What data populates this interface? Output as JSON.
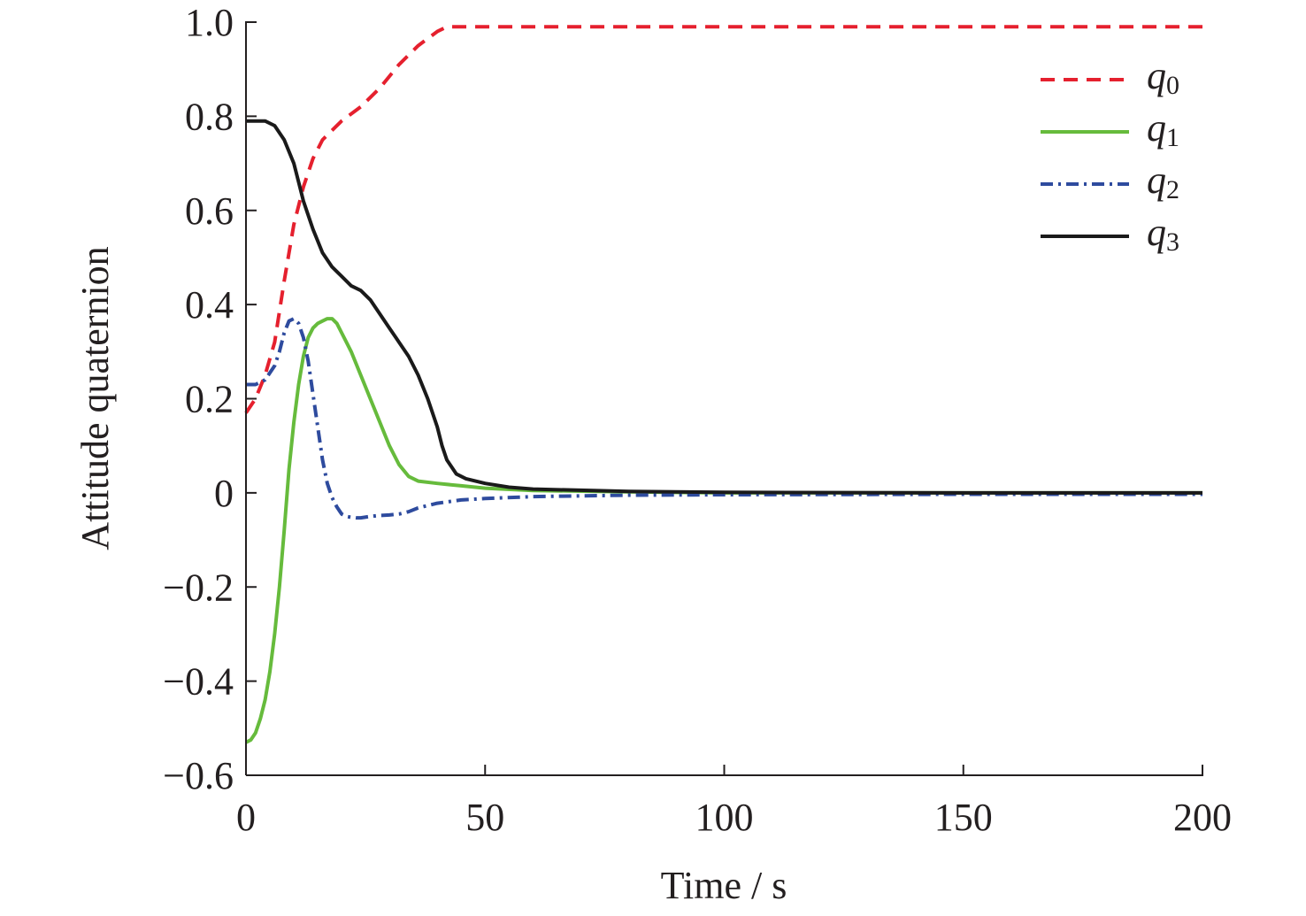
{
  "chart_data": {
    "type": "line",
    "title": "",
    "xlabel": "Time / s",
    "ylabel": "Attitude quaternion",
    "xlim": [
      0,
      200
    ],
    "ylim": [
      -0.6,
      1.0
    ],
    "xticks": [
      0,
      50,
      100,
      150,
      200
    ],
    "xtick_labels": [
      "0",
      "50",
      "100",
      "150",
      "200"
    ],
    "yticks": [
      -0.6,
      -0.4,
      -0.2,
      0,
      0.2,
      0.4,
      0.6,
      0.8,
      1.0
    ],
    "ytick_labels": [
      "−0.6",
      "−0.4",
      "−0.2",
      "0",
      "0.2",
      "0.4",
      "0.6",
      "0.8",
      "1.0"
    ],
    "grid": false,
    "legend_position": "top-right",
    "series": [
      {
        "name": "q",
        "subscript": "0",
        "color": "#e5202e",
        "style": "dashed",
        "x": [
          0,
          2,
          4,
          6,
          8,
          10,
          12,
          14,
          16,
          18,
          20,
          24,
          28,
          32,
          36,
          40,
          42,
          44,
          50,
          60,
          80,
          100,
          150,
          200
        ],
        "y": [
          0.17,
          0.2,
          0.25,
          0.32,
          0.45,
          0.57,
          0.65,
          0.71,
          0.75,
          0.77,
          0.79,
          0.82,
          0.86,
          0.91,
          0.95,
          0.98,
          0.99,
          0.99,
          0.99,
          0.99,
          0.99,
          0.99,
          0.99,
          0.99
        ]
      },
      {
        "name": "q",
        "subscript": "1",
        "color": "#66bb3c",
        "style": "solid",
        "x": [
          0,
          1,
          2,
          3,
          4,
          5,
          6,
          7,
          8,
          9,
          10,
          11,
          12,
          13,
          14,
          15,
          16,
          17,
          18,
          19,
          20,
          22,
          24,
          26,
          28,
          30,
          32,
          34,
          36,
          40,
          45,
          50,
          60,
          80,
          100,
          150,
          200
        ],
        "y": [
          -0.53,
          -0.525,
          -0.51,
          -0.48,
          -0.44,
          -0.38,
          -0.3,
          -0.2,
          -0.08,
          0.05,
          0.15,
          0.23,
          0.29,
          0.33,
          0.35,
          0.36,
          0.365,
          0.37,
          0.37,
          0.36,
          0.34,
          0.3,
          0.25,
          0.2,
          0.15,
          0.1,
          0.06,
          0.035,
          0.025,
          0.02,
          0.015,
          0.01,
          0.005,
          0.002,
          0.0,
          0.0,
          0.0
        ]
      },
      {
        "name": "q",
        "subscript": "2",
        "color": "#2e4b9e",
        "style": "dashdot",
        "x": [
          0,
          2,
          4,
          6,
          7,
          8,
          9,
          10,
          11,
          12,
          13,
          14,
          15,
          16,
          17,
          18,
          19,
          20,
          21,
          22,
          23,
          24,
          26,
          28,
          30,
          32,
          34,
          36,
          40,
          45,
          50,
          60,
          80,
          100,
          150,
          200
        ],
        "y": [
          0.23,
          0.23,
          0.24,
          0.27,
          0.3,
          0.34,
          0.365,
          0.37,
          0.36,
          0.33,
          0.28,
          0.21,
          0.14,
          0.07,
          0.02,
          -0.01,
          -0.03,
          -0.045,
          -0.05,
          -0.052,
          -0.053,
          -0.053,
          -0.05,
          -0.048,
          -0.047,
          -0.045,
          -0.04,
          -0.032,
          -0.022,
          -0.015,
          -0.012,
          -0.008,
          -0.005,
          -0.004,
          -0.003,
          -0.003
        ]
      },
      {
        "name": "q",
        "subscript": "3",
        "color": "#1a1a1a",
        "style": "solid",
        "x": [
          0,
          2,
          4,
          6,
          8,
          10,
          11,
          12,
          14,
          16,
          18,
          20,
          22,
          24,
          26,
          28,
          30,
          32,
          34,
          36,
          38,
          40,
          41,
          42,
          44,
          46,
          50,
          55,
          60,
          80,
          100,
          150,
          200
        ],
        "y": [
          0.79,
          0.79,
          0.79,
          0.78,
          0.75,
          0.7,
          0.66,
          0.62,
          0.56,
          0.51,
          0.48,
          0.46,
          0.44,
          0.43,
          0.41,
          0.38,
          0.35,
          0.32,
          0.29,
          0.25,
          0.2,
          0.14,
          0.1,
          0.07,
          0.04,
          0.03,
          0.02,
          0.012,
          0.008,
          0.003,
          0.001,
          0.0,
          0.0
        ]
      }
    ]
  }
}
